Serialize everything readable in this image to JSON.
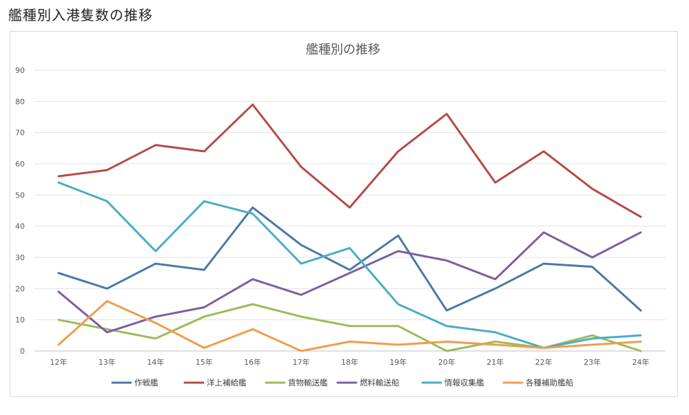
{
  "page": {
    "heading": "艦種別入港隻数の推移"
  },
  "chart_data": {
    "type": "line",
    "title": "艦種別の推移",
    "xlabel": "",
    "ylabel": "",
    "categories": [
      "12年",
      "13年",
      "14年",
      "15年",
      "16年",
      "17年",
      "18年",
      "19年",
      "20年",
      "21年",
      "22年",
      "23年",
      "24年"
    ],
    "ylim": [
      0,
      90
    ],
    "yticks": [
      0,
      10,
      20,
      30,
      40,
      50,
      60,
      70,
      80,
      90
    ],
    "grid": true,
    "legend_position": "bottom",
    "series": [
      {
        "name": "作戦艦",
        "color": "#4a78a8",
        "values": [
          25,
          20,
          28,
          26,
          46,
          34,
          26,
          37,
          13,
          20,
          28,
          27,
          13
        ]
      },
      {
        "name": "洋上補給艦",
        "color": "#b54a47",
        "values": [
          56,
          58,
          66,
          64,
          79,
          59,
          46,
          64,
          76,
          54,
          64,
          52,
          43
        ]
      },
      {
        "name": "貨物輸送艦",
        "color": "#9bbb59",
        "values": [
          10,
          7,
          4,
          11,
          15,
          11,
          8,
          8,
          0,
          3,
          1,
          5,
          0
        ]
      },
      {
        "name": "燃料輸送船",
        "color": "#7b5ea3",
        "values": [
          19,
          6,
          11,
          14,
          23,
          18,
          25,
          32,
          29,
          23,
          38,
          30,
          38
        ]
      },
      {
        "name": "情報収集艦",
        "color": "#4bacc6",
        "values": [
          54,
          48,
          32,
          48,
          44,
          28,
          33,
          15,
          8,
          6,
          1,
          4,
          5
        ]
      },
      {
        "name": "各種補助艦船",
        "color": "#f19c4c",
        "values": [
          2,
          16,
          9,
          1,
          7,
          0,
          3,
          2,
          3,
          2,
          1,
          2,
          3
        ]
      }
    ]
  }
}
